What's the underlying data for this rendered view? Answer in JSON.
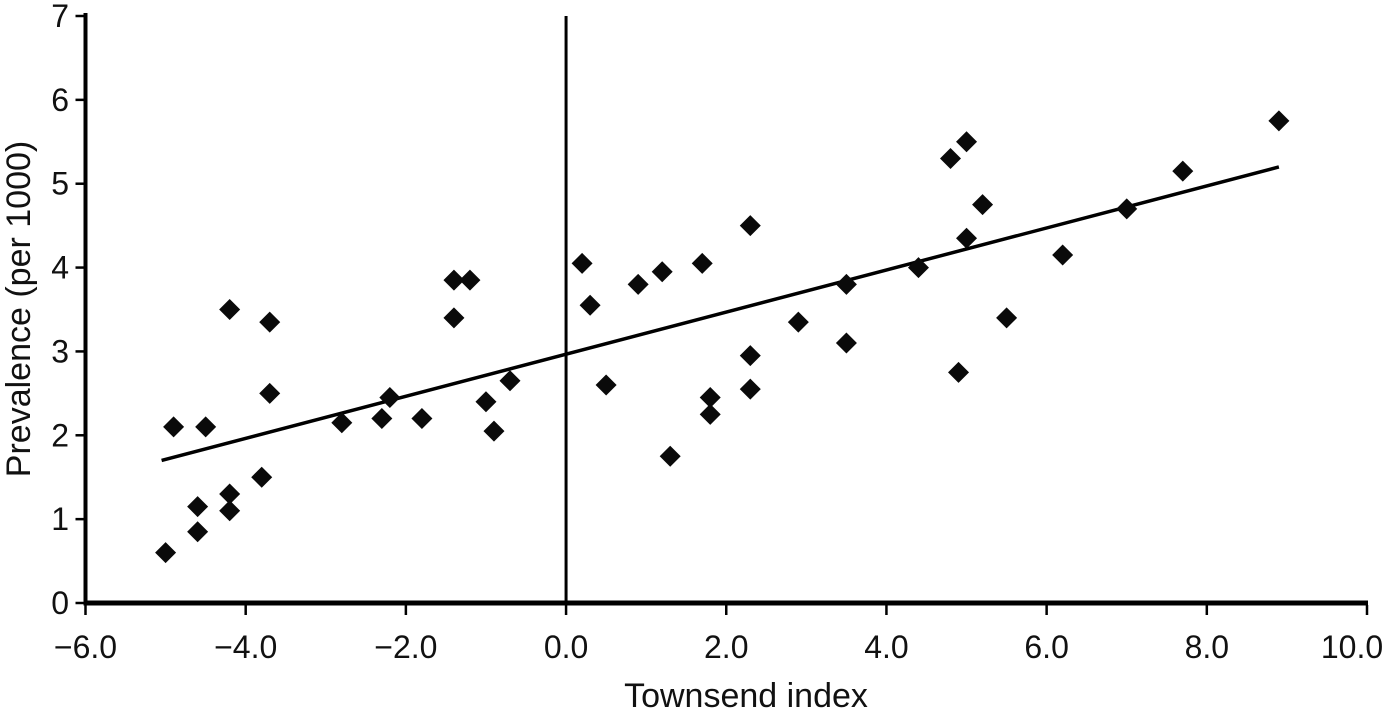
{
  "chart_data": {
    "type": "scatter",
    "title": "",
    "xlabel": "Townsend index",
    "ylabel": "Prevalence (per 1000)",
    "xlim": [
      -6.0,
      10.0
    ],
    "ylim": [
      0,
      7
    ],
    "grid": false,
    "legend": null,
    "marker": "diamond",
    "marker_color": "#0a0a0a",
    "axis_color": "#000000",
    "x_ticks": [
      -6.0,
      -4.0,
      -2.0,
      0.0,
      2.0,
      4.0,
      6.0,
      8.0,
      10.0
    ],
    "x_tick_labels": [
      "−6.0",
      "−4.0",
      "−2.0",
      "0.0",
      "2.0",
      "4.0",
      "6.0",
      "8.0",
      "10.0"
    ],
    "y_ticks": [
      0,
      1,
      2,
      3,
      4,
      5,
      6,
      7
    ],
    "y_tick_labels": [
      "0",
      "1",
      "2",
      "3",
      "4",
      "5",
      "6",
      "7"
    ],
    "reference_line_x": 0.0,
    "trendline": {
      "x1": -5.05,
      "y1": 1.7,
      "x2": 8.9,
      "y2": 5.2
    },
    "points": [
      [
        -5.0,
        0.6
      ],
      [
        -4.6,
        1.15
      ],
      [
        -4.6,
        0.85
      ],
      [
        -4.2,
        1.3
      ],
      [
        -4.2,
        1.1
      ],
      [
        -3.8,
        1.5
      ],
      [
        -4.9,
        2.1
      ],
      [
        -4.5,
        2.1
      ],
      [
        -2.8,
        2.15
      ],
      [
        -2.3,
        2.2
      ],
      [
        -2.2,
        2.45
      ],
      [
        -1.8,
        2.2
      ],
      [
        -4.2,
        3.5
      ],
      [
        -3.7,
        3.35
      ],
      [
        -3.7,
        2.5
      ],
      [
        -1.4,
        3.85
      ],
      [
        -1.2,
        3.85
      ],
      [
        -1.4,
        3.4
      ],
      [
        -1.0,
        2.4
      ],
      [
        -0.9,
        2.05
      ],
      [
        -0.7,
        2.65
      ],
      [
        0.2,
        4.05
      ],
      [
        0.3,
        3.55
      ],
      [
        0.5,
        2.6
      ],
      [
        0.9,
        3.8
      ],
      [
        1.2,
        3.95
      ],
      [
        1.3,
        1.75
      ],
      [
        1.7,
        4.05
      ],
      [
        1.8,
        2.45
      ],
      [
        1.8,
        2.25
      ],
      [
        2.3,
        2.55
      ],
      [
        2.3,
        4.5
      ],
      [
        2.3,
        2.95
      ],
      [
        2.9,
        3.35
      ],
      [
        3.5,
        3.8
      ],
      [
        3.5,
        3.1
      ],
      [
        4.4,
        4.0
      ],
      [
        4.8,
        5.3
      ],
      [
        4.9,
        2.75
      ],
      [
        5.0,
        5.5
      ],
      [
        5.0,
        4.35
      ],
      [
        5.2,
        4.75
      ],
      [
        5.5,
        3.4
      ],
      [
        6.2,
        4.15
      ],
      [
        7.0,
        4.7
      ],
      [
        7.7,
        5.15
      ],
      [
        8.9,
        5.75
      ]
    ]
  }
}
